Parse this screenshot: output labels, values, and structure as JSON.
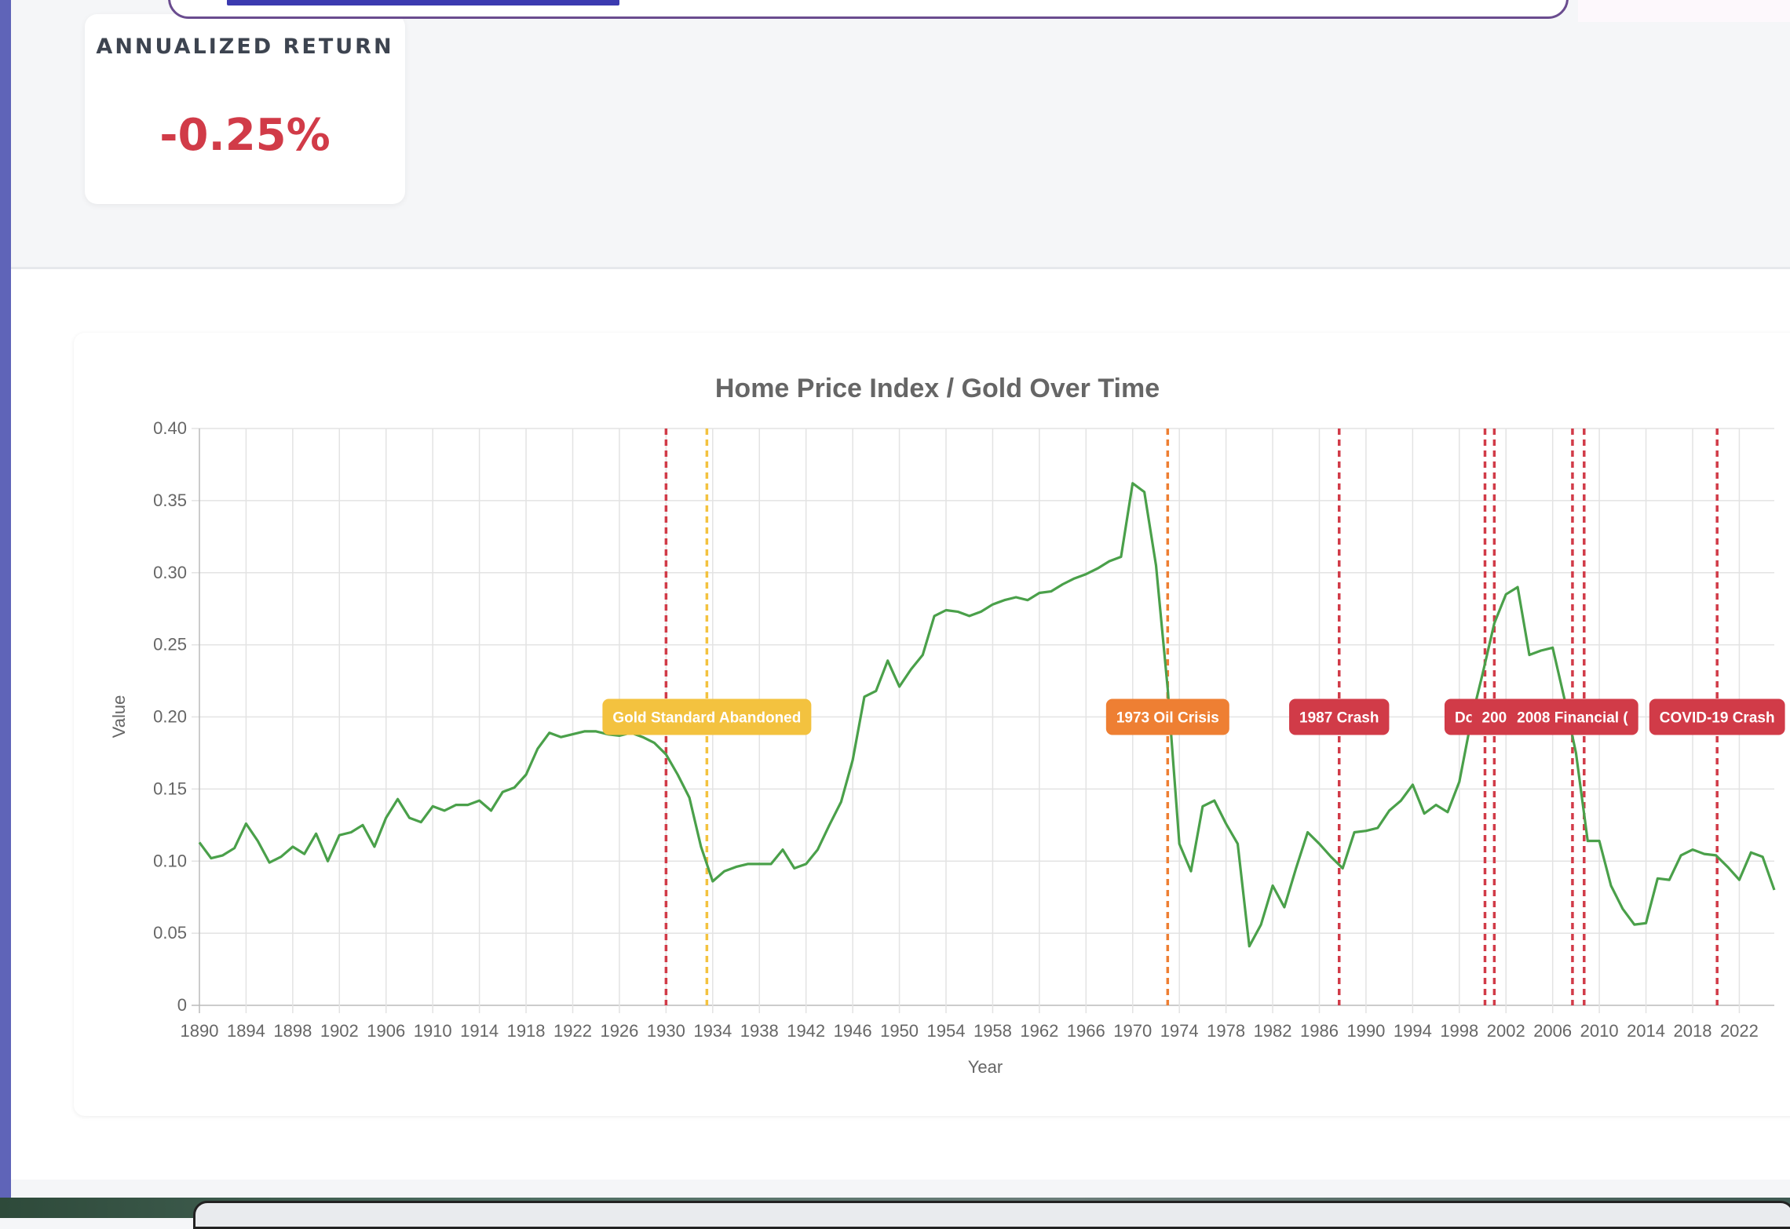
{
  "stat": {
    "label": "ANNUALIZED RETURN",
    "value": "-0.25%"
  },
  "colors": {
    "line": "#4aa04a",
    "red": "#d13b48",
    "orange": "#ee7f33",
    "yellow": "#f3c23f",
    "stat_value": "#d13b48"
  },
  "chart_data": {
    "type": "line",
    "title": "Home Price Index / Gold Over Time",
    "xlabel": "Year",
    "ylabel": "Value",
    "ylim": [
      0,
      0.4
    ],
    "xlim": [
      1890,
      2025
    ],
    "yticks": [
      "0",
      "0.05",
      "0.10",
      "0.15",
      "0.20",
      "0.25",
      "0.30",
      "0.35",
      "0.40"
    ],
    "xticks": [
      "1890",
      "1894",
      "1898",
      "1902",
      "1906",
      "1910",
      "1914",
      "1918",
      "1922",
      "1926",
      "1930",
      "1934",
      "1938",
      "1942",
      "1946",
      "1950",
      "1954",
      "1958",
      "1962",
      "1966",
      "1970",
      "1974",
      "1978",
      "1982",
      "1986",
      "1990",
      "1994",
      "1998",
      "2002",
      "2006",
      "2010",
      "2014",
      "2018",
      "2022"
    ],
    "grid": true,
    "series": [
      {
        "x": [
          1890,
          1891,
          1892,
          1893,
          1894,
          1895,
          1896,
          1897,
          1898,
          1899,
          1900,
          1901,
          1902,
          1903,
          1904,
          1905,
          1906,
          1907,
          1908,
          1909,
          1910,
          1911,
          1912,
          1913,
          1914,
          1915,
          1916,
          1917,
          1918,
          1919,
          1920,
          1921,
          1922,
          1923,
          1924,
          1925,
          1926,
          1927,
          1928,
          1929,
          1930,
          1931,
          1932,
          1933,
          1934,
          1935,
          1936,
          1937,
          1938,
          1939,
          1940,
          1941,
          1942,
          1943,
          1944,
          1945,
          1946,
          1947,
          1948,
          1949,
          1950,
          1951,
          1952,
          1953,
          1954,
          1955,
          1956,
          1957,
          1958,
          1959,
          1960,
          1961,
          1962,
          1963,
          1964,
          1965,
          1966,
          1967,
          1968,
          1969,
          1970,
          1971,
          1972,
          1973,
          1974,
          1975,
          1976,
          1977,
          1978,
          1979,
          1980,
          1981,
          1982,
          1983,
          1984,
          1985,
          1986,
          1987,
          1988,
          1989,
          1990,
          1991,
          1992,
          1993,
          1994,
          1995,
          1996,
          1997,
          1998,
          1999,
          2000,
          2001,
          2002,
          2003,
          2004,
          2005,
          2006,
          2007,
          2008,
          2009,
          2010,
          2011,
          2012,
          2013,
          2014,
          2015,
          2016,
          2017,
          2018,
          2019,
          2020,
          2021,
          2022,
          2023,
          2024,
          2025
        ],
        "values": [
          0.113,
          0.102,
          0.104,
          0.109,
          0.126,
          0.114,
          0.099,
          0.103,
          0.11,
          0.105,
          0.119,
          0.1,
          0.118,
          0.12,
          0.125,
          0.11,
          0.13,
          0.143,
          0.13,
          0.127,
          0.138,
          0.135,
          0.139,
          0.139,
          0.142,
          0.135,
          0.148,
          0.151,
          0.16,
          0.178,
          0.189,
          0.186,
          0.188,
          0.19,
          0.19,
          0.188,
          0.187,
          0.189,
          0.186,
          0.182,
          0.174,
          0.16,
          0.144,
          0.11,
          0.086,
          0.093,
          0.096,
          0.098,
          0.098,
          0.098,
          0.108,
          0.095,
          0.098,
          0.108,
          0.125,
          0.141,
          0.17,
          0.214,
          0.218,
          0.239,
          0.221,
          0.233,
          0.243,
          0.27,
          0.274,
          0.273,
          0.27,
          0.273,
          0.278,
          0.281,
          0.283,
          0.281,
          0.286,
          0.287,
          0.292,
          0.296,
          0.299,
          0.303,
          0.308,
          0.311,
          0.362,
          0.356,
          0.305,
          0.22,
          0.112,
          0.093,
          0.138,
          0.142,
          0.126,
          0.112,
          0.041,
          0.056,
          0.083,
          0.068,
          0.095,
          0.12,
          0.112,
          0.103,
          0.095,
          0.12,
          0.121,
          0.123,
          0.135,
          0.142,
          0.153,
          0.133,
          0.139,
          0.134,
          0.155,
          0.197,
          0.23,
          0.265,
          0.285,
          0.29,
          0.243,
          0.246,
          0.248,
          0.213,
          0.175,
          0.114,
          0.114,
          0.083,
          0.067,
          0.056,
          0.057,
          0.088,
          0.087,
          0.104,
          0.108,
          0.105,
          0.104,
          0.096,
          0.087,
          0.106,
          0.103,
          0.08
        ]
      }
    ],
    "annotations": [
      {
        "x": 1930,
        "label": "",
        "color": "#d13b48"
      },
      {
        "x": 1933.5,
        "label": "Gold Standard Abandoned",
        "color": "#f3c23f"
      },
      {
        "x": 1973,
        "label": "1973 Oil Crisis",
        "color": "#ee7f33"
      },
      {
        "x": 1987.7,
        "label": "1987 Crash",
        "color": "#d13b48"
      },
      {
        "x": 2000.2,
        "label": "Dot-com",
        "color": "#d13b48"
      },
      {
        "x": 2001,
        "label": "200",
        "color": "#d13b48"
      },
      {
        "x": 2007.7,
        "label": "2008 Financial (",
        "color": "#d13b48"
      },
      {
        "x": 2008.7,
        "label": "",
        "color": "#d13b48"
      },
      {
        "x": 2020.1,
        "label": "COVID-19 Crash",
        "color": "#d13b48"
      }
    ]
  }
}
